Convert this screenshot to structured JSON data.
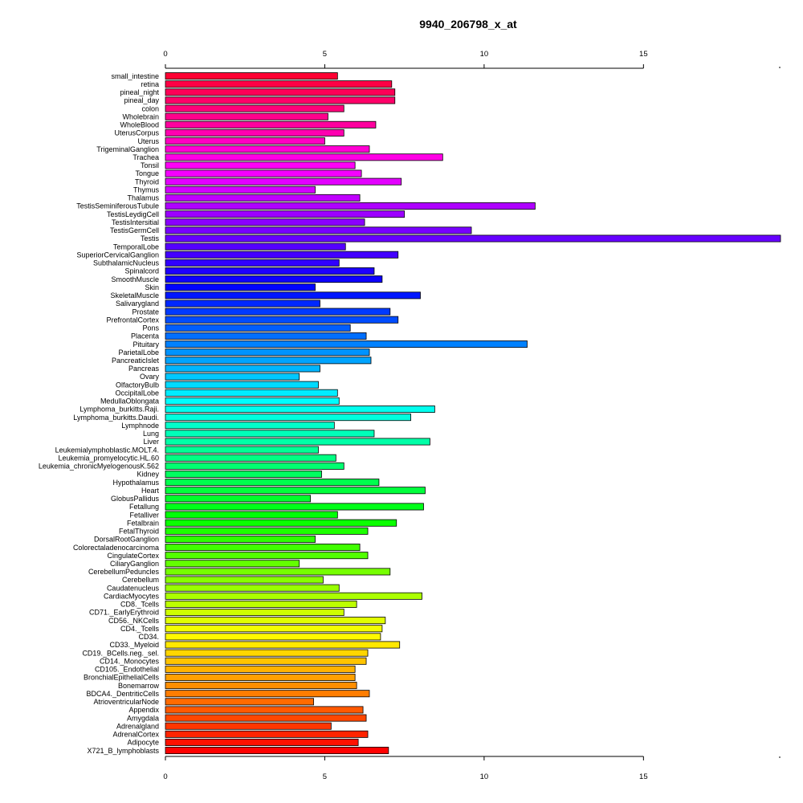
{
  "chart_data": {
    "type": "bar",
    "orientation": "horizontal",
    "title": "9940_206798_x_at",
    "xlabel": "",
    "ylabel": "",
    "xlim": [
      0,
      19.3
    ],
    "xticks": [
      0,
      5,
      10,
      15
    ],
    "grid": false,
    "legend": "none",
    "categories": [
      "small_intestine",
      "retina",
      "pineal_night",
      "pineal_day",
      "colon",
      "Wholebrain",
      "WholeBlood",
      "UterusCorpus",
      "Uterus",
      "TrigeminalGanglion",
      "Trachea",
      "Tonsil",
      "Tongue",
      "Thyroid",
      "Thymus",
      "Thalamus",
      "TestisSeminiferousTubule",
      "TestisLeydigCell",
      "TestisIntersitial",
      "TestisGermCell",
      "Testis",
      "TemporalLobe",
      "SuperiorCervicalGanglion",
      "SubthalamicNucleus",
      "Spinalcord",
      "SmoothMuscle",
      "Skin",
      "SkeletalMuscle",
      "Salivarygland",
      "Prostate",
      "PrefrontalCortex",
      "Pons",
      "Placenta",
      "Pituitary",
      "ParietalLobe",
      "PancreaticIslet",
      "Pancreas",
      "Ovary",
      "OlfactoryBulb",
      "OccipitalLobe",
      "MedullaOblongata",
      "Lymphoma_burkitts.Raji.",
      "Lymphoma_burkitts.Daudi.",
      "Lymphnode",
      "Lung",
      "Liver",
      "Leukemialymphoblastic.MOLT.4.",
      "Leukemia_promyelocytic.HL.60",
      "Leukemia_chronicMyelogenousK.562",
      "Kidney",
      "Hypothalamus",
      "Heart",
      "GlobusPallidus",
      "Fetallung",
      "Fetalliver",
      "Fetalbrain",
      "FetalThyroid",
      "DorsalRootGanglion",
      "Colorectaladenocarcinoma",
      "CingulateCortex",
      "CiliaryGanglion",
      "CerebellumPeduncles",
      "Cerebellum",
      "Caudatenucleus",
      "CardiacMyocytes",
      "CD8._Tcells",
      "CD71._EarlyErythroid",
      "CD56._NKCells",
      "CD4._Tcells",
      "CD34.",
      "CD33._Myeloid",
      "CD19._BCells.neg._sel.",
      "CD14._Monocytes",
      "CD105._Endothelial",
      "BronchialEpithelialCells",
      "Bonemarrow",
      "BDCA4._DentriticCells",
      "AtrioventricularNode",
      "Appendix",
      "Amygdala",
      "Adrenalgland",
      "AdrenalCortex",
      "Adipocyte",
      "X721_B_lymphoblasts"
    ],
    "values": [
      5.4,
      7.1,
      7.2,
      7.2,
      5.6,
      5.1,
      6.6,
      5.6,
      5.0,
      6.4,
      8.7,
      5.95,
      6.15,
      7.4,
      4.7,
      6.1,
      11.6,
      7.5,
      6.25,
      9.6,
      19.3,
      5.65,
      7.3,
      5.45,
      6.55,
      6.8,
      4.7,
      8.0,
      4.85,
      7.05,
      7.3,
      5.8,
      6.3,
      11.35,
      6.4,
      6.45,
      4.85,
      4.2,
      4.8,
      5.4,
      5.45,
      8.45,
      7.7,
      5.3,
      6.55,
      8.3,
      4.8,
      5.35,
      5.6,
      4.9,
      6.7,
      8.15,
      4.55,
      8.1,
      5.4,
      7.25,
      6.35,
      4.7,
      6.1,
      6.35,
      4.2,
      7.05,
      4.95,
      5.45,
      8.05,
      6.0,
      5.6,
      6.9,
      6.8,
      6.75,
      7.35,
      6.35,
      6.3,
      5.95,
      5.95,
      6.0,
      6.4,
      4.65,
      6.2,
      6.3,
      5.2,
      6.35,
      6.05,
      7.0
    ]
  }
}
